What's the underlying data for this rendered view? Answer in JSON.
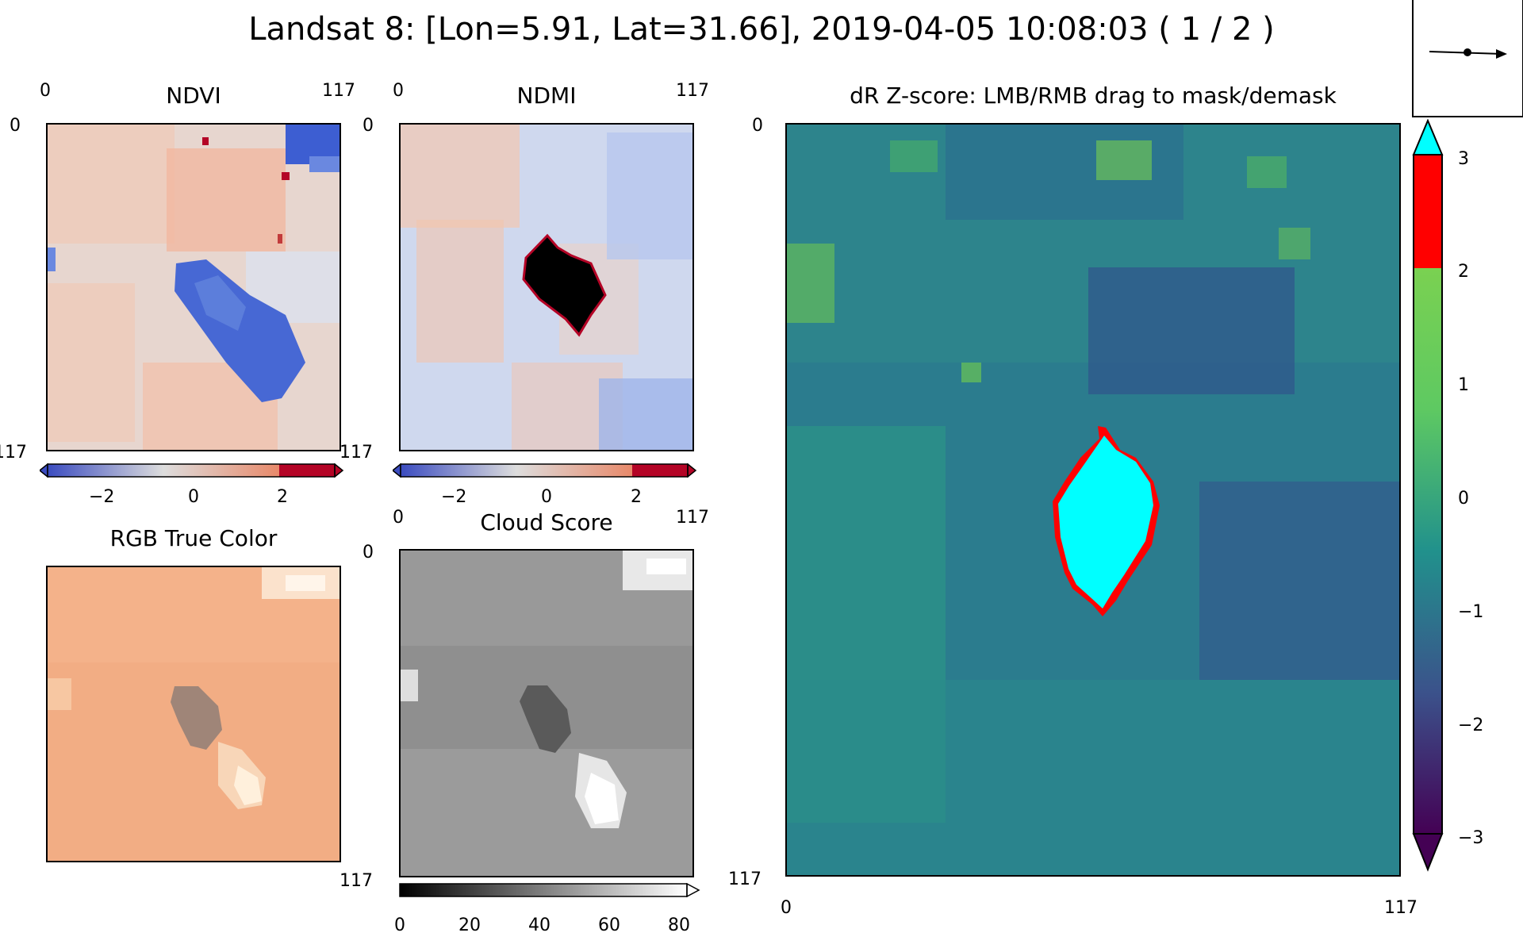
{
  "window": {
    "title": "Landsat 8: [Lon=5.91, Lat=31.66], 2019-04-05 10:08:03 ( 1 / 2 )"
  },
  "panels": {
    "ndvi": {
      "title": "NDVI",
      "x_ticks": [
        "0",
        "117"
      ],
      "y_ticks": [
        "0",
        "117"
      ],
      "colorbar_ticks": [
        "−2",
        "0",
        "2"
      ],
      "colorbar_colors": [
        "#3b4cc0",
        "#dddddd",
        "#b40426"
      ]
    },
    "ndmi": {
      "title": "NDMI",
      "x_ticks": [
        "0",
        "117"
      ],
      "y_ticks": [
        "0",
        "117"
      ],
      "colorbar_ticks": [
        "−2",
        "0",
        "2"
      ],
      "colorbar_colors": [
        "#3b4cc0",
        "#dddddd",
        "#b40426"
      ]
    },
    "rgb": {
      "title": "RGB True Color"
    },
    "cloud": {
      "title": "Cloud Score",
      "x_ticks": [
        "0",
        "117"
      ],
      "y_ticks": [
        "0",
        "117"
      ],
      "colorbar_ticks": [
        "0",
        "20",
        "40",
        "60",
        "80"
      ]
    },
    "zscore": {
      "title": "dR Z-score: LMB/RMB drag to mask/demask",
      "x_ticks": [
        "0",
        "117"
      ],
      "y_ticks": [
        "0",
        "117"
      ],
      "colorbar_ticks": [
        "3",
        "2",
        "1",
        "0",
        "−1",
        "−2",
        "−3"
      ],
      "colorbar_colors": {
        "over": "#00ffff",
        "mask": "#ff0000",
        "high": "#7ad151",
        "mid": "#21918c",
        "low": "#440154"
      }
    }
  },
  "navigator": {
    "icon": "arrow-right-icon"
  }
}
